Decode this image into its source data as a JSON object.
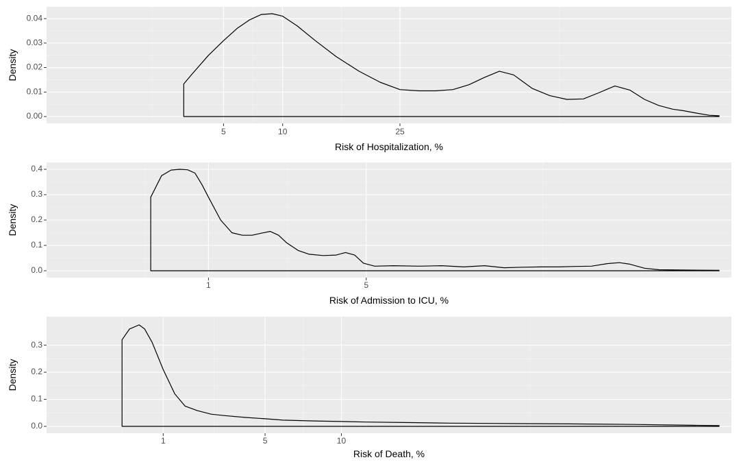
{
  "chart_data": [
    {
      "type": "line",
      "xlabel": "Risk of Hospitalization, %",
      "ylabel": "Density",
      "xscale": "sqrt",
      "xlim": [
        0,
        100
      ],
      "ylim": [
        0,
        0.042
      ],
      "x_ticks": [
        5,
        10,
        25
      ],
      "y_ticks": [
        0.0,
        0.01,
        0.02,
        0.03,
        0.04
      ],
      "y_tick_labels": [
        "0.00",
        "0.01",
        "0.02",
        "0.03",
        "0.04"
      ],
      "grid": true,
      "series": [
        {
          "points": [
            [
              2.6,
              0.0133
            ],
            [
              3,
              0.017
            ],
            [
              4,
              0.025
            ],
            [
              5,
              0.031
            ],
            [
              6,
              0.036
            ],
            [
              7,
              0.0395
            ],
            [
              8,
              0.0417
            ],
            [
              9,
              0.042
            ],
            [
              10,
              0.041
            ],
            [
              11.5,
              0.037
            ],
            [
              13.5,
              0.031
            ],
            [
              16,
              0.0245
            ],
            [
              19,
              0.0185
            ],
            [
              22,
              0.014
            ],
            [
              25,
              0.011
            ],
            [
              28,
              0.0105
            ],
            [
              31,
              0.0105
            ],
            [
              34,
              0.011
            ],
            [
              37,
              0.013
            ],
            [
              40,
              0.016
            ],
            [
              43,
              0.0185
            ],
            [
              46,
              0.017
            ],
            [
              50,
              0.0115
            ],
            [
              54,
              0.0085
            ],
            [
              58,
              0.007
            ],
            [
              62,
              0.0072
            ],
            [
              66,
              0.0098
            ],
            [
              70,
              0.0125
            ],
            [
              74,
              0.0108
            ],
            [
              78,
              0.007
            ],
            [
              82,
              0.0045
            ],
            [
              86,
              0.003
            ],
            [
              89,
              0.0024
            ],
            [
              93,
              0.0014
            ],
            [
              97,
              0.0005
            ],
            [
              100,
              0.0003
            ]
          ]
        }
      ]
    },
    {
      "type": "line",
      "xlabel": "Risk of Admission to ICU, %",
      "ylabel": "Density",
      "xscale": "sqrt",
      "xlim": [
        0,
        25
      ],
      "ylim": [
        0,
        0.4
      ],
      "x_ticks": [
        1,
        5
      ],
      "y_ticks": [
        0.0,
        0.1,
        0.2,
        0.3,
        0.4
      ],
      "y_tick_labels": [
        "0.0",
        "0.1",
        "0.2",
        "0.3",
        "0.4"
      ],
      "grid": true,
      "series": [
        {
          "points": [
            [
              0.3,
              0.29
            ],
            [
              0.4,
              0.375
            ],
            [
              0.5,
              0.397
            ],
            [
              0.6,
              0.4
            ],
            [
              0.7,
              0.398
            ],
            [
              0.8,
              0.385
            ],
            [
              0.9,
              0.34
            ],
            [
              1,
              0.29
            ],
            [
              1.2,
              0.2
            ],
            [
              1.4,
              0.15
            ],
            [
              1.6,
              0.14
            ],
            [
              1.8,
              0.14
            ],
            [
              2,
              0.148
            ],
            [
              2.2,
              0.155
            ],
            [
              2.4,
              0.14
            ],
            [
              2.6,
              0.11
            ],
            [
              2.9,
              0.08
            ],
            [
              3.2,
              0.065
            ],
            [
              3.6,
              0.06
            ],
            [
              4,
              0.062
            ],
            [
              4.3,
              0.072
            ],
            [
              4.6,
              0.062
            ],
            [
              4.9,
              0.03
            ],
            [
              5.3,
              0.018
            ],
            [
              6,
              0.02
            ],
            [
              7,
              0.018
            ],
            [
              8,
              0.02
            ],
            [
              9,
              0.015
            ],
            [
              10,
              0.02
            ],
            [
              11,
              0.012
            ],
            [
              12,
              0.014
            ],
            [
              13,
              0.015
            ],
            [
              14,
              0.015
            ],
            [
              15,
              0.017
            ],
            [
              16,
              0.018
            ],
            [
              17,
              0.028
            ],
            [
              17.8,
              0.032
            ],
            [
              18.5,
              0.026
            ],
            [
              19.5,
              0.01
            ],
            [
              20.5,
              0.004
            ],
            [
              22,
              0.003
            ],
            [
              25,
              0.002
            ]
          ]
        }
      ]
    },
    {
      "type": "line",
      "xlabel": "Risk of Death, %",
      "ylabel": "Density",
      "xscale": "sqrt",
      "xlim": [
        0,
        60
      ],
      "ylim": [
        0,
        0.38
      ],
      "x_ticks": [
        1,
        5,
        10
      ],
      "y_ticks": [
        0.0,
        0.1,
        0.2,
        0.3
      ],
      "y_tick_labels": [
        "0.0",
        "0.1",
        "0.2",
        "0.3"
      ],
      "grid": true,
      "series": [
        {
          "points": [
            [
              0.25,
              0.32
            ],
            [
              0.35,
              0.36
            ],
            [
              0.5,
              0.375
            ],
            [
              0.6,
              0.36
            ],
            [
              0.75,
              0.31
            ],
            [
              1,
              0.21
            ],
            [
              1.3,
              0.12
            ],
            [
              1.6,
              0.075
            ],
            [
              2,
              0.058
            ],
            [
              2.5,
              0.045
            ],
            [
              3,
              0.04
            ],
            [
              4,
              0.033
            ],
            [
              5,
              0.028
            ],
            [
              6,
              0.023
            ],
            [
              8,
              0.02
            ],
            [
              10,
              0.018
            ],
            [
              12,
              0.016
            ],
            [
              16,
              0.014
            ],
            [
              20,
              0.012
            ],
            [
              25,
              0.011
            ],
            [
              35,
              0.009
            ],
            [
              45,
              0.007
            ],
            [
              55,
              0.004
            ],
            [
              60,
              0.003
            ]
          ]
        }
      ]
    }
  ]
}
